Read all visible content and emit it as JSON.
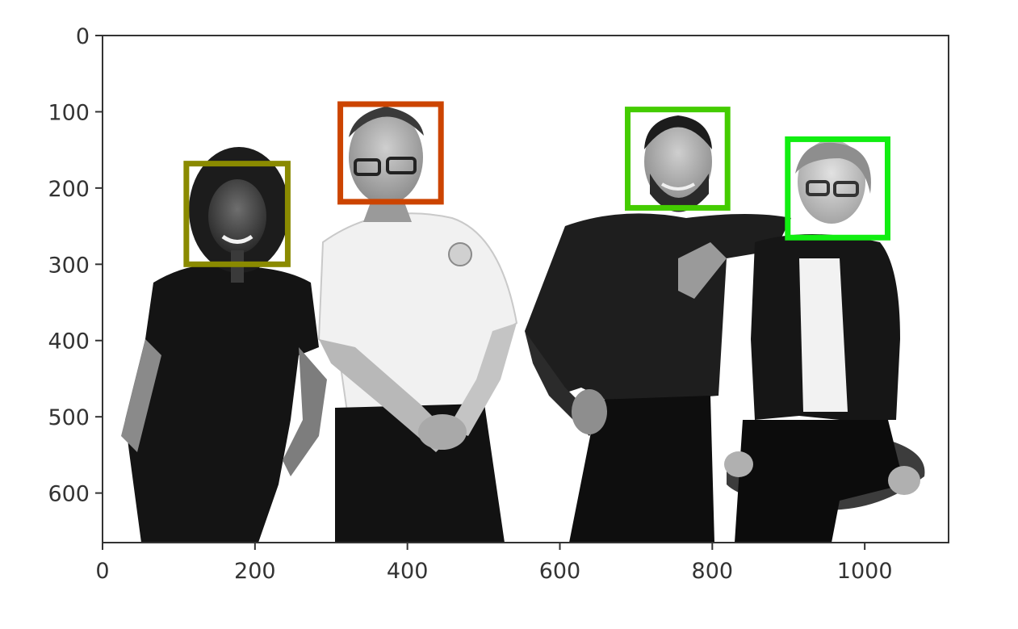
{
  "image": {
    "description_colors": {
      "background": "#ffffff",
      "photo_dark": "#111111",
      "photo_light": "#f4f4f4",
      "axis": "#333333"
    },
    "axes": {
      "x_range": [
        0,
        1110
      ],
      "y_range": [
        0,
        665
      ],
      "y_inverted": true,
      "x_ticks": [
        {
          "value": 0,
          "label": "0"
        },
        {
          "value": 200,
          "label": "200"
        },
        {
          "value": 400,
          "label": "400"
        },
        {
          "value": 600,
          "label": "600"
        },
        {
          "value": 800,
          "label": "800"
        },
        {
          "value": 1000,
          "label": "1000"
        }
      ],
      "y_ticks": [
        {
          "value": 0,
          "label": "0"
        },
        {
          "value": 100,
          "label": "100"
        },
        {
          "value": 200,
          "label": "200"
        },
        {
          "value": 300,
          "label": "300"
        },
        {
          "value": 400,
          "label": "400"
        },
        {
          "value": 500,
          "label": "500"
        },
        {
          "value": 600,
          "label": "600"
        }
      ]
    },
    "face_boxes": [
      {
        "x0": 110,
        "y0": 168,
        "x1": 243,
        "y1": 300,
        "color": "#8a8a00"
      },
      {
        "x0": 312,
        "y0": 90,
        "x1": 444,
        "y1": 218,
        "color": "#cc4400"
      },
      {
        "x0": 689,
        "y0": 97,
        "x1": 820,
        "y1": 226,
        "color": "#44cc00"
      },
      {
        "x0": 899,
        "y0": 136,
        "x1": 1030,
        "y1": 265,
        "color": "#11ee11"
      }
    ]
  }
}
